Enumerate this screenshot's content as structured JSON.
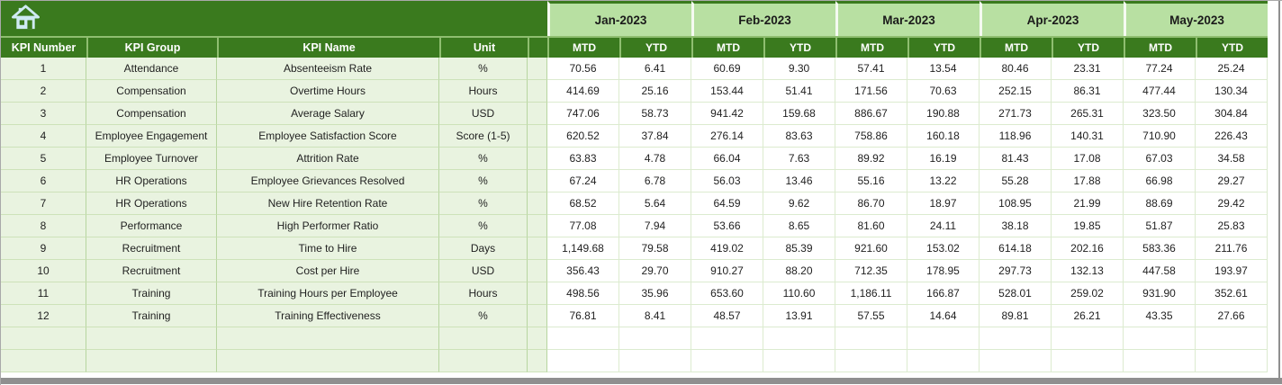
{
  "toolbar": {
    "home_button_label": "Home"
  },
  "table": {
    "left_headers": [
      "KPI Number",
      "KPI Group",
      "KPI Name",
      "Unit"
    ],
    "months": [
      "Jan-2023",
      "Feb-2023",
      "Mar-2023",
      "Apr-2023",
      "May-2023"
    ],
    "period_headers": [
      "MTD",
      "YTD"
    ],
    "rows": [
      {
        "number": "1",
        "group": "Attendance",
        "name": "Absenteeism Rate",
        "unit": "%",
        "values": [
          "70.56",
          "6.41",
          "60.69",
          "9.30",
          "57.41",
          "13.54",
          "80.46",
          "23.31",
          "77.24",
          "25.24"
        ]
      },
      {
        "number": "2",
        "group": "Compensation",
        "name": "Overtime Hours",
        "unit": "Hours",
        "values": [
          "414.69",
          "25.16",
          "153.44",
          "51.41",
          "171.56",
          "70.63",
          "252.15",
          "86.31",
          "477.44",
          "130.34"
        ]
      },
      {
        "number": "3",
        "group": "Compensation",
        "name": "Average Salary",
        "unit": "USD",
        "values": [
          "747.06",
          "58.73",
          "941.42",
          "159.68",
          "886.67",
          "190.88",
          "271.73",
          "265.31",
          "323.50",
          "304.84"
        ]
      },
      {
        "number": "4",
        "group": "Employee Engagement",
        "name": "Employee Satisfaction Score",
        "unit": "Score (1-5)",
        "values": [
          "620.52",
          "37.84",
          "276.14",
          "83.63",
          "758.86",
          "160.18",
          "118.96",
          "140.31",
          "710.90",
          "226.43"
        ]
      },
      {
        "number": "5",
        "group": "Employee Turnover",
        "name": "Attrition Rate",
        "unit": "%",
        "values": [
          "63.83",
          "4.78",
          "66.04",
          "7.63",
          "89.92",
          "16.19",
          "81.43",
          "17.08",
          "67.03",
          "34.58"
        ]
      },
      {
        "number": "6",
        "group": "HR Operations",
        "name": "Employee Grievances Resolved",
        "unit": "%",
        "values": [
          "67.24",
          "6.78",
          "56.03",
          "13.46",
          "55.16",
          "13.22",
          "55.28",
          "17.88",
          "66.98",
          "29.27"
        ]
      },
      {
        "number": "7",
        "group": "HR Operations",
        "name": "New Hire Retention Rate",
        "unit": "%",
        "values": [
          "68.52",
          "5.64",
          "64.59",
          "9.62",
          "86.70",
          "18.97",
          "108.95",
          "21.99",
          "88.69",
          "29.42"
        ]
      },
      {
        "number": "8",
        "group": "Performance",
        "name": "High Performer Ratio",
        "unit": "%",
        "values": [
          "77.08",
          "7.94",
          "53.66",
          "8.65",
          "81.60",
          "24.11",
          "38.18",
          "19.85",
          "51.87",
          "25.83"
        ]
      },
      {
        "number": "9",
        "group": "Recruitment",
        "name": "Time to Hire",
        "unit": "Days",
        "values": [
          "1,149.68",
          "79.58",
          "419.02",
          "85.39",
          "921.60",
          "153.02",
          "614.18",
          "202.16",
          "583.36",
          "211.76"
        ]
      },
      {
        "number": "10",
        "group": "Recruitment",
        "name": "Cost per Hire",
        "unit": "USD",
        "values": [
          "356.43",
          "29.70",
          "910.27",
          "88.20",
          "712.35",
          "178.95",
          "297.73",
          "132.13",
          "447.58",
          "193.97"
        ]
      },
      {
        "number": "11",
        "group": "Training",
        "name": "Training Hours per Employee",
        "unit": "Hours",
        "values": [
          "498.56",
          "35.96",
          "653.60",
          "110.60",
          "1,186.11",
          "166.87",
          "528.01",
          "259.02",
          "931.90",
          "352.61"
        ]
      },
      {
        "number": "12",
        "group": "Training",
        "name": "Training Effectiveness",
        "unit": "%",
        "values": [
          "76.81",
          "8.41",
          "48.57",
          "13.91",
          "57.55",
          "14.64",
          "89.81",
          "26.21",
          "43.35",
          "27.66"
        ]
      }
    ],
    "empty_row_count": 2
  },
  "colors": {
    "dark_green": "#3a7a1e",
    "light_green": "#b8e0a2",
    "pale_green": "#e9f3e0",
    "grid_pale_v": "#b7d5a0",
    "grid_pale_h": "#cde2b9",
    "grid_white": "#dcebcf",
    "header_separator": "#8fbe70",
    "home_icon": "#cfeaf3",
    "window_edge": "#8f8f8f"
  }
}
